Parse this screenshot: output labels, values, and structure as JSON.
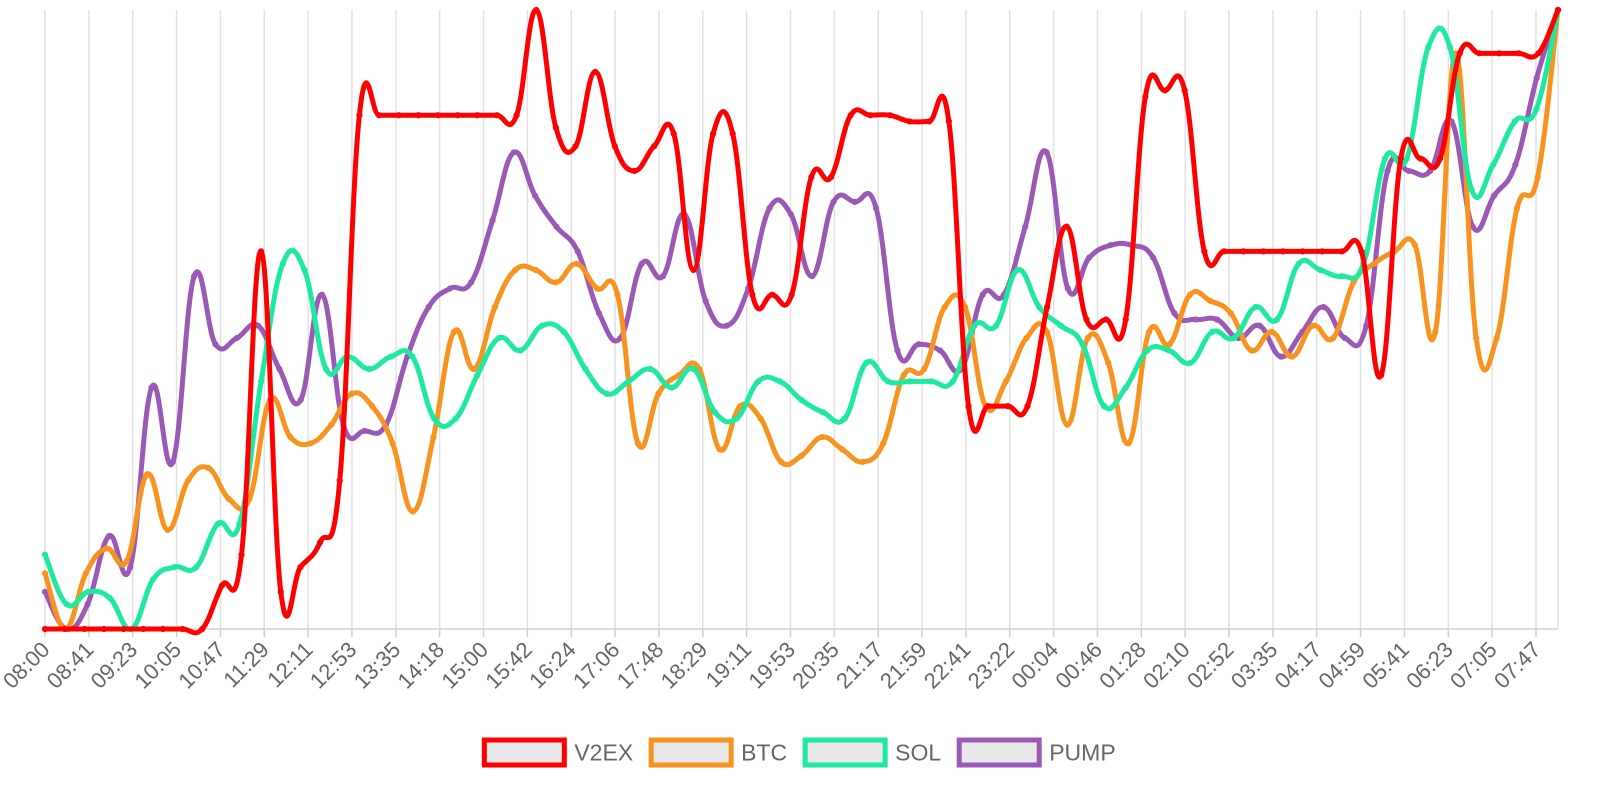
{
  "chart_data": {
    "type": "line",
    "title": "",
    "xlabel": "",
    "ylabel": "",
    "ylim": [
      0,
      100
    ],
    "grid": "vertical",
    "legend_position": "bottom-center",
    "x_tick_labels": [
      "08:00",
      "08:41",
      "09:23",
      "10:05",
      "10:47",
      "11:29",
      "12:11",
      "12:53",
      "13:35",
      "14:18",
      "15:00",
      "15:42",
      "16:24",
      "17:06",
      "17:48",
      "18:29",
      "19:11",
      "19:53",
      "20:35",
      "21:17",
      "21:59",
      "22:41",
      "23:22",
      "00:04",
      "00:46",
      "01:28",
      "02:10",
      "02:52",
      "03:35",
      "04:17",
      "04:59",
      "05:41",
      "06:23",
      "07:05",
      "07:47"
    ],
    "points_per_label": 2,
    "series": [
      {
        "name": "V2EX",
        "color": "#ff0000",
        "values": [
          0,
          0,
          0,
          0,
          0,
          0,
          0,
          0,
          0,
          7,
          12,
          61,
          6,
          10,
          14,
          24,
          83,
          83,
          83,
          83,
          83,
          83,
          83,
          83,
          83,
          100,
          81,
          78,
          90,
          78,
          74,
          78,
          80,
          58,
          80,
          80,
          54,
          54,
          54,
          73,
          73,
          83,
          83,
          83,
          82,
          82,
          82,
          36,
          36,
          36,
          36,
          52,
          65,
          50,
          50,
          50,
          86,
          87,
          87,
          61,
          61,
          61,
          61,
          61,
          61,
          61,
          61,
          61,
          41,
          76,
          76,
          76,
          93,
          93,
          93,
          93,
          93,
          100
        ]
      },
      {
        "name": "BTC",
        "color": "#f7931e",
        "values": [
          9,
          0,
          9,
          13,
          11,
          25,
          16,
          24,
          26,
          21,
          21,
          37,
          31,
          30,
          33,
          38,
          36,
          30,
          19,
          31,
          48,
          42,
          52,
          58,
          58,
          56,
          59,
          55,
          54,
          30,
          38,
          41,
          42,
          29,
          36,
          34,
          27,
          28,
          31,
          29,
          27,
          30,
          41,
          42,
          52,
          52,
          36,
          40,
          47,
          48,
          33,
          47,
          43,
          30,
          48,
          46,
          54,
          53,
          51,
          45,
          48,
          44,
          49,
          47,
          56,
          59,
          61,
          62,
          48,
          93,
          47,
          47,
          68,
          73,
          100
        ]
      },
      {
        "name": "SOL",
        "color": "#1de9a0",
        "values": [
          12,
          4,
          6,
          5,
          0,
          8,
          10,
          10,
          17,
          17,
          40,
          59,
          58,
          42,
          44,
          42,
          44,
          44,
          34,
          34,
          41,
          47,
          45,
          49,
          48,
          42,
          38,
          40,
          42,
          39,
          42,
          35,
          34,
          40,
          40,
          37,
          35,
          34,
          43,
          40,
          40,
          40,
          40,
          49,
          49,
          58,
          52,
          49,
          46,
          36,
          39,
          45,
          45,
          43,
          48,
          47,
          52,
          50,
          59,
          58,
          57,
          59,
          76,
          76,
          94,
          94,
          71,
          75,
          82,
          84,
          100
        ]
      },
      {
        "name": "PUMP",
        "color": "#9b59b6",
        "values": [
          6,
          0,
          4,
          15,
          10,
          39,
          27,
          57,
          46,
          47,
          49,
          42,
          37,
          54,
          33,
          32,
          33,
          44,
          52,
          55,
          56,
          66,
          77,
          70,
          65,
          61,
          51,
          47,
          59,
          57,
          67,
          53,
          49,
          55,
          68,
          67,
          57,
          69,
          69,
          68,
          45,
          46,
          45,
          42,
          54,
          54,
          65,
          77,
          55,
          60,
          62,
          62,
          60,
          51,
          50,
          50,
          47,
          49,
          44,
          48,
          52,
          47,
          49,
          74,
          74,
          74,
          82,
          65,
          70,
          75,
          89,
          100
        ]
      }
    ]
  },
  "legend": {
    "items": [
      {
        "label": "V2EX",
        "color": "#ff0000"
      },
      {
        "label": "BTC",
        "color": "#f7931e"
      },
      {
        "label": "SOL",
        "color": "#1de9a0"
      },
      {
        "label": "PUMP",
        "color": "#9b59b6"
      }
    ]
  }
}
